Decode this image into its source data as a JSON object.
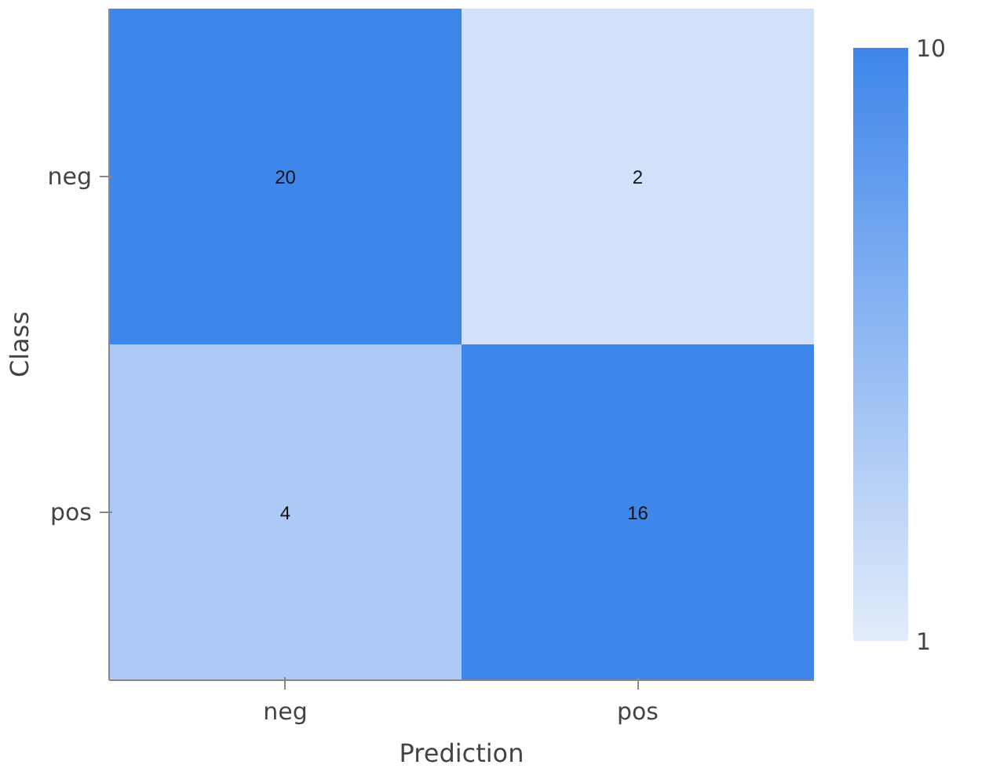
{
  "chart_data": {
    "type": "heatmap",
    "xlabel": "Prediction",
    "ylabel": "Class",
    "categories": [
      "neg",
      "pos"
    ],
    "y_categories": [
      "neg",
      "pos"
    ],
    "cells": [
      [
        20,
        2
      ],
      [
        4,
        16
      ]
    ],
    "data_labels": true,
    "clim": [
      1,
      10
    ],
    "cticks": [
      1,
      10
    ],
    "colors": [
      "#e3ecfb",
      "#3f86ea"
    ]
  }
}
